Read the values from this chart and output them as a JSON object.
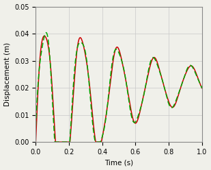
{
  "title": "",
  "xlabel": "Time (s)",
  "ylabel": "Displacement (m)",
  "xlim": [
    0.0,
    1.0
  ],
  "ylim": [
    0.0,
    0.05
  ],
  "xticks": [
    0.0,
    0.2,
    0.4,
    0.6,
    0.8,
    1.0
  ],
  "yticks": [
    0.0,
    0.01,
    0.02,
    0.03,
    0.04,
    0.05
  ],
  "grid_color": "#c8c8c8",
  "line1_color": "#cc0000",
  "line2_color": "#00aa00",
  "line_width": 1.1,
  "background_color": "#f0f0ea",
  "border_color": "#888888",
  "red_key_points": [
    [
      0.0,
      0.0
    ],
    [
      0.11,
      0.041
    ],
    [
      0.22,
      0.005
    ],
    [
      0.33,
      0.035
    ],
    [
      0.435,
      0.01
    ],
    [
      0.52,
      0.034
    ],
    [
      0.575,
      0.025
    ],
    [
      0.63,
      0.011
    ],
    [
      0.7,
      0.025
    ],
    [
      0.745,
      0.019
    ],
    [
      0.8,
      0.031
    ],
    [
      0.845,
      0.024
    ],
    [
      0.875,
      0.013
    ],
    [
      0.92,
      0.025
    ],
    [
      0.955,
      0.02
    ],
    [
      1.0,
      0.026
    ]
  ],
  "green_key_points": [
    [
      0.0,
      0.0
    ],
    [
      0.11,
      0.041
    ],
    [
      0.22,
      0.005
    ],
    [
      0.33,
      0.037
    ],
    [
      0.435,
      0.013
    ],
    [
      0.52,
      0.033
    ],
    [
      0.57,
      0.028
    ],
    [
      0.63,
      0.013
    ],
    [
      0.695,
      0.03
    ],
    [
      0.745,
      0.016
    ],
    [
      0.8,
      0.033
    ],
    [
      0.845,
      0.026
    ],
    [
      0.875,
      0.016
    ],
    [
      0.93,
      0.03
    ],
    [
      0.97,
      0.022
    ],
    [
      1.0,
      0.03
    ]
  ]
}
